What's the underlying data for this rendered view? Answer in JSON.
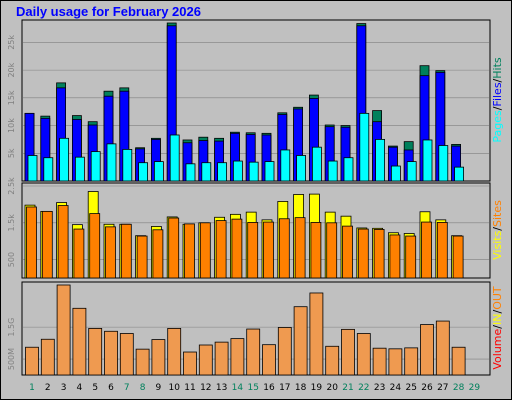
{
  "title": "Daily usage for February 2026",
  "colors": {
    "hits": "#00805c",
    "files": "#0000ff",
    "pages": "#00ffff",
    "visits": "#ffff00",
    "sites": "#ff8000",
    "kbytes": "#ff0000",
    "in_out_fill": "#ef9a50",
    "weekday_label": "#00805c",
    "weekend_label": "#00805c",
    "grid": "#808080",
    "panel_bg": "#c0c0c0"
  },
  "chart_data": [
    {
      "type": "bar",
      "panel": "hits-files-pages",
      "categories": [
        "1",
        "2",
        "3",
        "4",
        "5",
        "6",
        "7",
        "8",
        "9",
        "10",
        "11",
        "12",
        "13",
        "14",
        "15",
        "16",
        "17",
        "18",
        "19",
        "20",
        "21",
        "22",
        "23",
        "24",
        "25",
        "26",
        "27",
        "28",
        "29"
      ],
      "y_tick_labels": [
        "5k",
        "10k",
        "15k",
        "20k",
        "25k"
      ],
      "y_ticks": [
        5000,
        10000,
        15000,
        20000,
        25000
      ],
      "ylim": [
        0,
        28500
      ],
      "series": [
        {
          "name": "Hits",
          "values": [
            12200,
            11700,
            17700,
            11800,
            10700,
            16200,
            16800,
            6000,
            7700,
            28500,
            7400,
            7900,
            7700,
            8800,
            8700,
            8600,
            12300,
            13300,
            15500,
            10100,
            10000,
            28400,
            12700,
            6300,
            7100,
            20800,
            19900,
            6600,
            null
          ]
        },
        {
          "name": "Files",
          "values": [
            12200,
            11300,
            16800,
            11100,
            10100,
            15300,
            16200,
            5800,
            7500,
            28000,
            6900,
            7300,
            7200,
            8600,
            8400,
            8300,
            12000,
            13000,
            14900,
            9800,
            9700,
            28000,
            10700,
            6100,
            5600,
            19000,
            19600,
            6300,
            null
          ]
        },
        {
          "name": "Pages",
          "values": [
            4600,
            4200,
            7700,
            4300,
            5300,
            6700,
            5700,
            3300,
            3500,
            8300,
            3100,
            3300,
            3300,
            3600,
            3400,
            3500,
            5600,
            4600,
            6100,
            3600,
            4200,
            12200,
            7500,
            2700,
            3500,
            7400,
            6400,
            2500,
            null
          ]
        }
      ],
      "legend": [
        "Pages",
        "/",
        "Files",
        "/",
        "Hits"
      ]
    },
    {
      "type": "bar",
      "panel": "visits-sites",
      "categories": [
        "1",
        "2",
        "3",
        "4",
        "5",
        "6",
        "7",
        "8",
        "9",
        "10",
        "11",
        "12",
        "13",
        "14",
        "15",
        "16",
        "17",
        "18",
        "19",
        "20",
        "21",
        "22",
        "23",
        "24",
        "25",
        "26",
        "27",
        "28",
        "29"
      ],
      "y_tick_labels": [
        "500",
        "1.5k",
        "2.5k"
      ],
      "y_ticks": [
        500,
        1500,
        2500
      ],
      "ylim": [
        0,
        2500
      ],
      "series": [
        {
          "name": "Visits",
          "values": [
            1980,
            1810,
            2050,
            1450,
            2350,
            1460,
            1460,
            1150,
            1400,
            1660,
            1460,
            1500,
            1650,
            1730,
            1790,
            1580,
            2080,
            2270,
            2280,
            1790,
            1680,
            1360,
            1350,
            1230,
            1210,
            1800,
            1580,
            1150,
            null
          ]
        },
        {
          "name": "Sites",
          "values": [
            1930,
            1810,
            1970,
            1330,
            1750,
            1390,
            1460,
            1140,
            1310,
            1630,
            1470,
            1500,
            1560,
            1600,
            1510,
            1520,
            1610,
            1640,
            1510,
            1500,
            1410,
            1330,
            1320,
            1170,
            1140,
            1520,
            1510,
            1140,
            null
          ]
        }
      ],
      "legend": [
        "Visits",
        "/",
        "Sites"
      ]
    },
    {
      "type": "bar",
      "panel": "volume",
      "categories": [
        "1",
        "2",
        "3",
        "4",
        "5",
        "6",
        "7",
        "8",
        "9",
        "10",
        "11",
        "12",
        "13",
        "14",
        "15",
        "16",
        "17",
        "18",
        "19",
        "20",
        "21",
        "22",
        "23",
        "24",
        "25",
        "26",
        "27",
        "28",
        "29"
      ],
      "y_tick_labels": [
        "500M",
        "1.5G"
      ],
      "y_ticks": [
        500,
        1500
      ],
      "ylim": [
        0,
        2820
      ],
      "series": [
        {
          "name": "Volume",
          "values": [
            870,
            1120,
            2820,
            2090,
            1460,
            1370,
            1300,
            810,
            1110,
            1460,
            720,
            940,
            1030,
            1140,
            1440,
            950,
            1490,
            2140,
            2570,
            900,
            1430,
            1300,
            840,
            820,
            850,
            1580,
            1690,
            870,
            null
          ]
        }
      ],
      "legend": [
        "Volume",
        "/",
        "IN",
        "/",
        "OUT"
      ]
    }
  ]
}
